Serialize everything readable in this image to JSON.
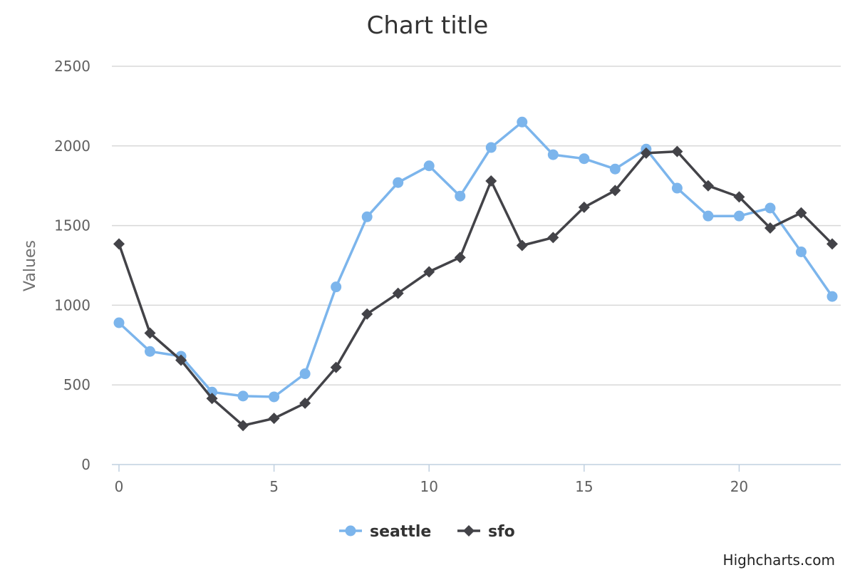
{
  "chart_data": {
    "type": "line",
    "title": "Chart title",
    "ylabel": "Values",
    "xlabel": "",
    "xlim": [
      0,
      23
    ],
    "ylim": [
      0,
      2500
    ],
    "y_ticks": [
      0,
      500,
      1000,
      1500,
      2000,
      2500
    ],
    "x_ticks": [
      0,
      5,
      10,
      15,
      20
    ],
    "grid": true,
    "legend_position": "bottom-center",
    "x": [
      0,
      1,
      2,
      3,
      4,
      5,
      6,
      7,
      8,
      9,
      10,
      11,
      12,
      13,
      14,
      15,
      16,
      17,
      18,
      19,
      20,
      21,
      22,
      23
    ],
    "series": [
      {
        "name": "seattle",
        "color": "#7cb5ec",
        "marker": "circle",
        "values": [
          890,
          710,
          680,
          455,
          430,
          425,
          570,
          1115,
          1555,
          1770,
          1875,
          1685,
          1990,
          2150,
          1945,
          1920,
          1855,
          1980,
          1735,
          1560,
          1560,
          1610,
          1335,
          1055
        ]
      },
      {
        "name": "sfo",
        "color": "#434348",
        "marker": "diamond",
        "values": [
          1385,
          825,
          655,
          415,
          245,
          290,
          385,
          610,
          945,
          1075,
          1210,
          1300,
          1780,
          1375,
          1425,
          1615,
          1720,
          1955,
          1965,
          1750,
          1680,
          1485,
          1580,
          1385
        ]
      }
    ]
  },
  "credits": "Highcharts.com"
}
